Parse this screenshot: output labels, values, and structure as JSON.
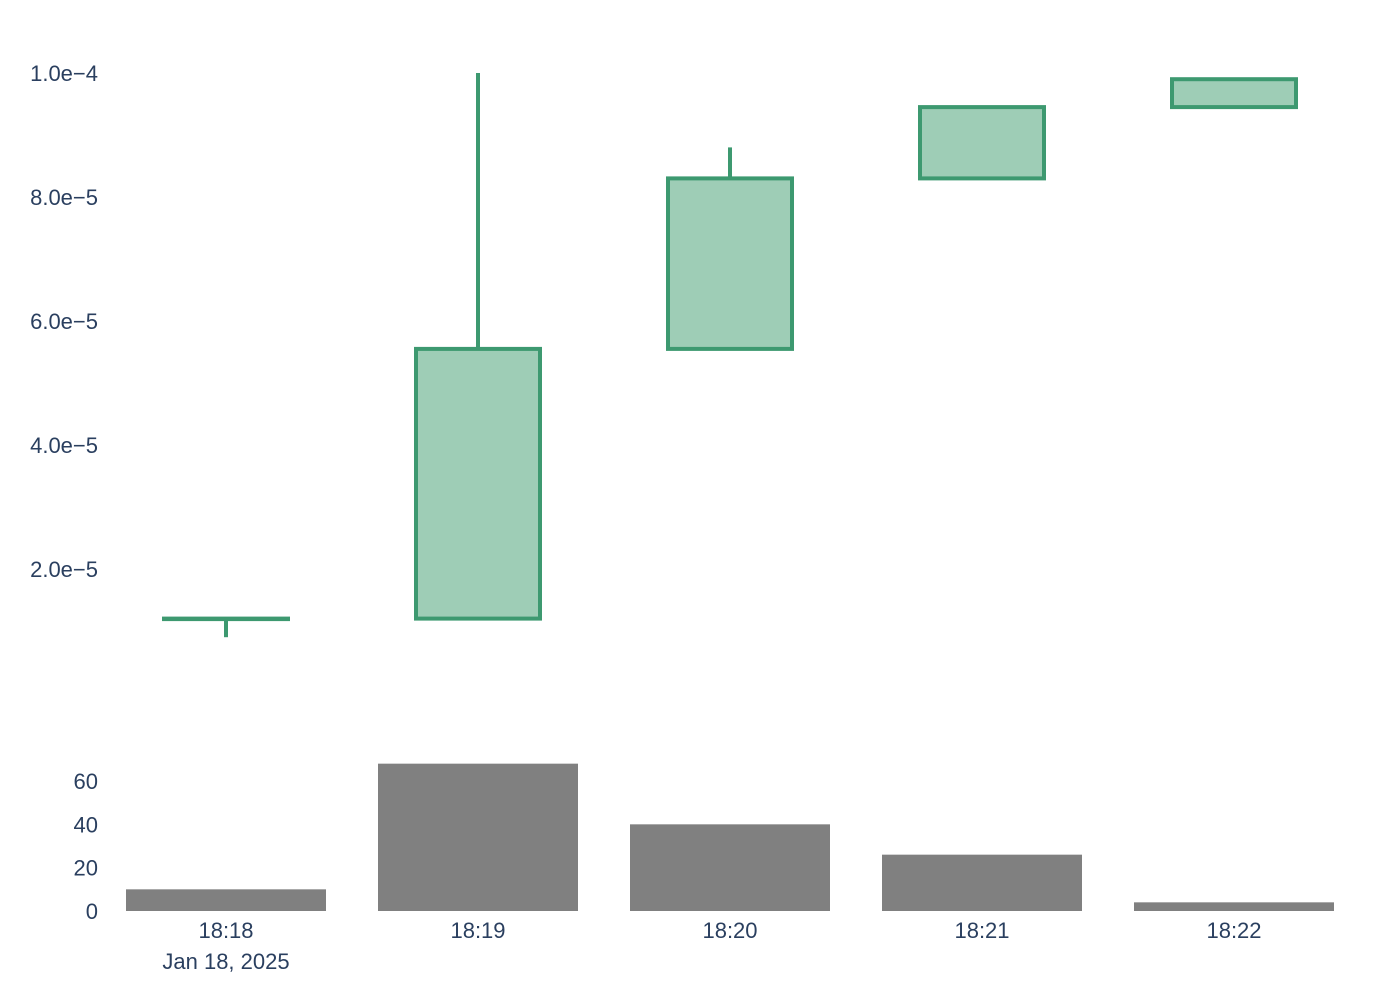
{
  "chart_data": [
    {
      "type": "candlestick",
      "x": [
        "18:18",
        "18:19",
        "18:20",
        "18:21",
        "18:22"
      ],
      "date_label": "Jan 18, 2025",
      "open": [
        1.2e-05,
        1.2e-05,
        5.55e-05,
        8.3e-05,
        9.45e-05
      ],
      "high": [
        1.2e-05,
        0.0001,
        8.8e-05,
        9.45e-05,
        9.9e-05
      ],
      "low": [
        9e-06,
        1.2e-05,
        5.55e-05,
        8.3e-05,
        9.45e-05
      ],
      "close": [
        1.2e-05,
        5.55e-05,
        8.3e-05,
        9.45e-05,
        9.9e-05
      ],
      "yticks": [
        "2.0e−5",
        "4.0e−5",
        "6.0e−5",
        "8.0e−5",
        "1.0e−4"
      ],
      "ytick_values": [
        2e-05,
        4e-05,
        6e-05,
        8e-05,
        0.0001
      ],
      "increasing_color": "#3d9970",
      "increasing_fill": "#9ecdb6"
    },
    {
      "type": "bar",
      "categories": [
        "18:18",
        "18:19",
        "18:20",
        "18:21",
        "18:22"
      ],
      "values": [
        10,
        68,
        40,
        26,
        4
      ],
      "yticks": [
        "0",
        "20",
        "40",
        "60"
      ],
      "ytick_values": [
        0,
        20,
        40,
        60
      ],
      "bar_color": "#808080"
    }
  ]
}
